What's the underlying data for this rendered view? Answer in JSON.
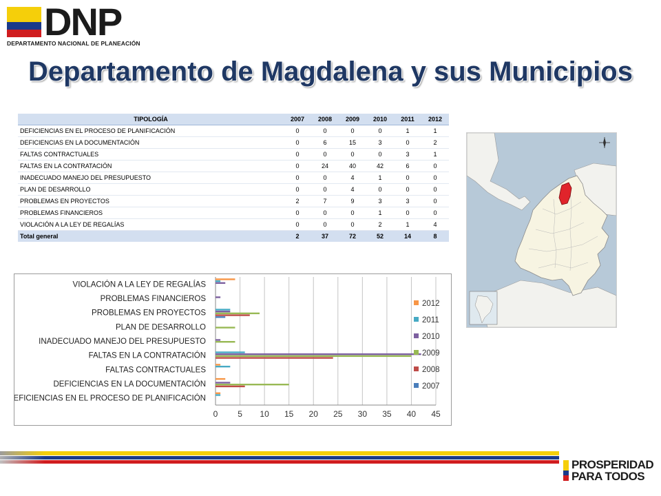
{
  "header": {
    "logo_text": "DNP",
    "logo_subtitle": "DEPARTAMENTO NACIONAL DE PLANEACIÓN",
    "title": "Departamento de Magdalena y sus Municipios"
  },
  "table": {
    "columns": [
      "TIPOLOGÍA",
      "2007",
      "2008",
      "2009",
      "2010",
      "2011",
      "2012"
    ],
    "rows": [
      {
        "label": "DEFICIENCIAS  EN EL PROCESO DE PLANIFICACIÓN",
        "values": [
          "0",
          "0",
          "0",
          "0",
          "1",
          "1"
        ]
      },
      {
        "label": "DEFICIENCIAS  EN LA DOCUMENTACIÓN",
        "values": [
          "0",
          "6",
          "15",
          "3",
          "0",
          "2"
        ]
      },
      {
        "label": "FALTAS CONTRACTUALES",
        "values": [
          "0",
          "0",
          "0",
          "0",
          "3",
          "1"
        ]
      },
      {
        "label": "FALTAS EN LA CONTRATACIÓN",
        "values": [
          "0",
          "24",
          "40",
          "42",
          "6",
          "0"
        ]
      },
      {
        "label": "INADECUADO  MANEJO DEL PRESUPUESTO",
        "values": [
          "0",
          "0",
          "4",
          "1",
          "0",
          "0"
        ]
      },
      {
        "label": "PLAN DE DESARROLLO",
        "values": [
          "0",
          "0",
          "4",
          "0",
          "0",
          "0"
        ]
      },
      {
        "label": "PROBLEMAS  EN PROYECTOS",
        "values": [
          "2",
          "7",
          "9",
          "3",
          "3",
          "0"
        ]
      },
      {
        "label": "PROBLEMAS FINANCIEROS",
        "values": [
          "0",
          "0",
          "0",
          "1",
          "0",
          "0"
        ]
      },
      {
        "label": "VIOLACIÓN A LA LEY DE REGALÍAS",
        "values": [
          "0",
          "0",
          "0",
          "2",
          "1",
          "4"
        ]
      }
    ],
    "total": {
      "label": "Total general",
      "values": [
        "2",
        "37",
        "72",
        "52",
        "14",
        "8"
      ]
    }
  },
  "chart_data": {
    "type": "bar",
    "orientation": "horizontal",
    "categories": [
      "DEFICIENCIAS EN EL PROCESO DE PLANIFICACIÓN",
      "DEFICIENCIAS EN LA DOCUMENTACIÓN",
      "FALTAS CONTRACTUALES",
      "FALTAS EN LA CONTRATACIÓN",
      "INADECUADO MANEJO DEL PRESUPUESTO",
      "PLAN DE DESARROLLO",
      "PROBLEMAS EN PROYECTOS",
      "PROBLEMAS FINANCIEROS",
      "VIOLACIÓN A LA LEY DE REGALÍAS"
    ],
    "series": [
      {
        "name": "2007",
        "color": "#4a7ebb",
        "values": [
          0,
          0,
          0,
          0,
          0,
          0,
          2,
          0,
          0
        ]
      },
      {
        "name": "2008",
        "color": "#be4b48",
        "values": [
          0,
          6,
          0,
          24,
          0,
          0,
          7,
          0,
          0
        ]
      },
      {
        "name": "2009",
        "color": "#98b954",
        "values": [
          0,
          15,
          0,
          40,
          4,
          4,
          9,
          0,
          0
        ]
      },
      {
        "name": "2010",
        "color": "#7d60a0",
        "values": [
          0,
          3,
          0,
          42,
          1,
          0,
          3,
          1,
          2
        ]
      },
      {
        "name": "2011",
        "color": "#46aac4",
        "values": [
          1,
          0,
          3,
          6,
          0,
          0,
          3,
          0,
          1
        ]
      },
      {
        "name": "2012",
        "color": "#f79646",
        "values": [
          1,
          2,
          1,
          0,
          0,
          0,
          0,
          0,
          4
        ]
      }
    ],
    "xlim": [
      0,
      45
    ],
    "xticks": [
      0,
      5,
      10,
      15,
      20,
      25,
      30,
      35,
      40,
      45
    ],
    "grid": true,
    "legend_position": "right"
  },
  "footer": {
    "brand_line1": "PROSPERIDAD",
    "brand_line2": "PARA TODOS"
  },
  "colors": {
    "flag_yellow": "#f5cf0a",
    "flag_blue": "#1a3a8a",
    "flag_red": "#d01c1f",
    "title_blue": "#1f3864",
    "table_header_bg": "#d3dff0",
    "map_highlight": "#e0242b"
  }
}
